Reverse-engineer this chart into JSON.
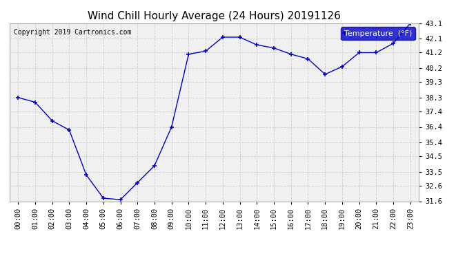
{
  "title": "Wind Chill Hourly Average (24 Hours) 20191126",
  "copyright_text": "Copyright 2019 Cartronics.com",
  "legend_label": "Temperature  (°F)",
  "hours": [
    "00:00",
    "01:00",
    "02:00",
    "03:00",
    "04:00",
    "05:00",
    "06:00",
    "07:00",
    "08:00",
    "09:00",
    "10:00",
    "11:00",
    "12:00",
    "13:00",
    "14:00",
    "15:00",
    "16:00",
    "17:00",
    "18:00",
    "19:00",
    "20:00",
    "21:00",
    "22:00",
    "23:00"
  ],
  "values": [
    38.3,
    38.0,
    36.8,
    36.2,
    33.3,
    31.8,
    31.7,
    32.8,
    33.9,
    36.4,
    41.1,
    41.3,
    42.2,
    42.2,
    41.7,
    41.5,
    41.1,
    40.8,
    39.8,
    40.3,
    41.2,
    41.2,
    41.8,
    43.1
  ],
  "line_color": "#0000CC",
  "marker": "+",
  "marker_size": 5,
  "background_color": "#ffffff",
  "plot_bg_color": "#f0f0f0",
  "grid_color": "#cccccc",
  "ylim": [
    31.6,
    43.1
  ],
  "yticks": [
    31.6,
    32.6,
    33.5,
    34.5,
    35.4,
    36.4,
    37.4,
    38.3,
    39.3,
    40.2,
    41.2,
    42.1,
    43.1
  ],
  "title_fontsize": 11,
  "tick_fontsize": 7.5,
  "legend_fontsize": 8,
  "copyright_fontsize": 7
}
